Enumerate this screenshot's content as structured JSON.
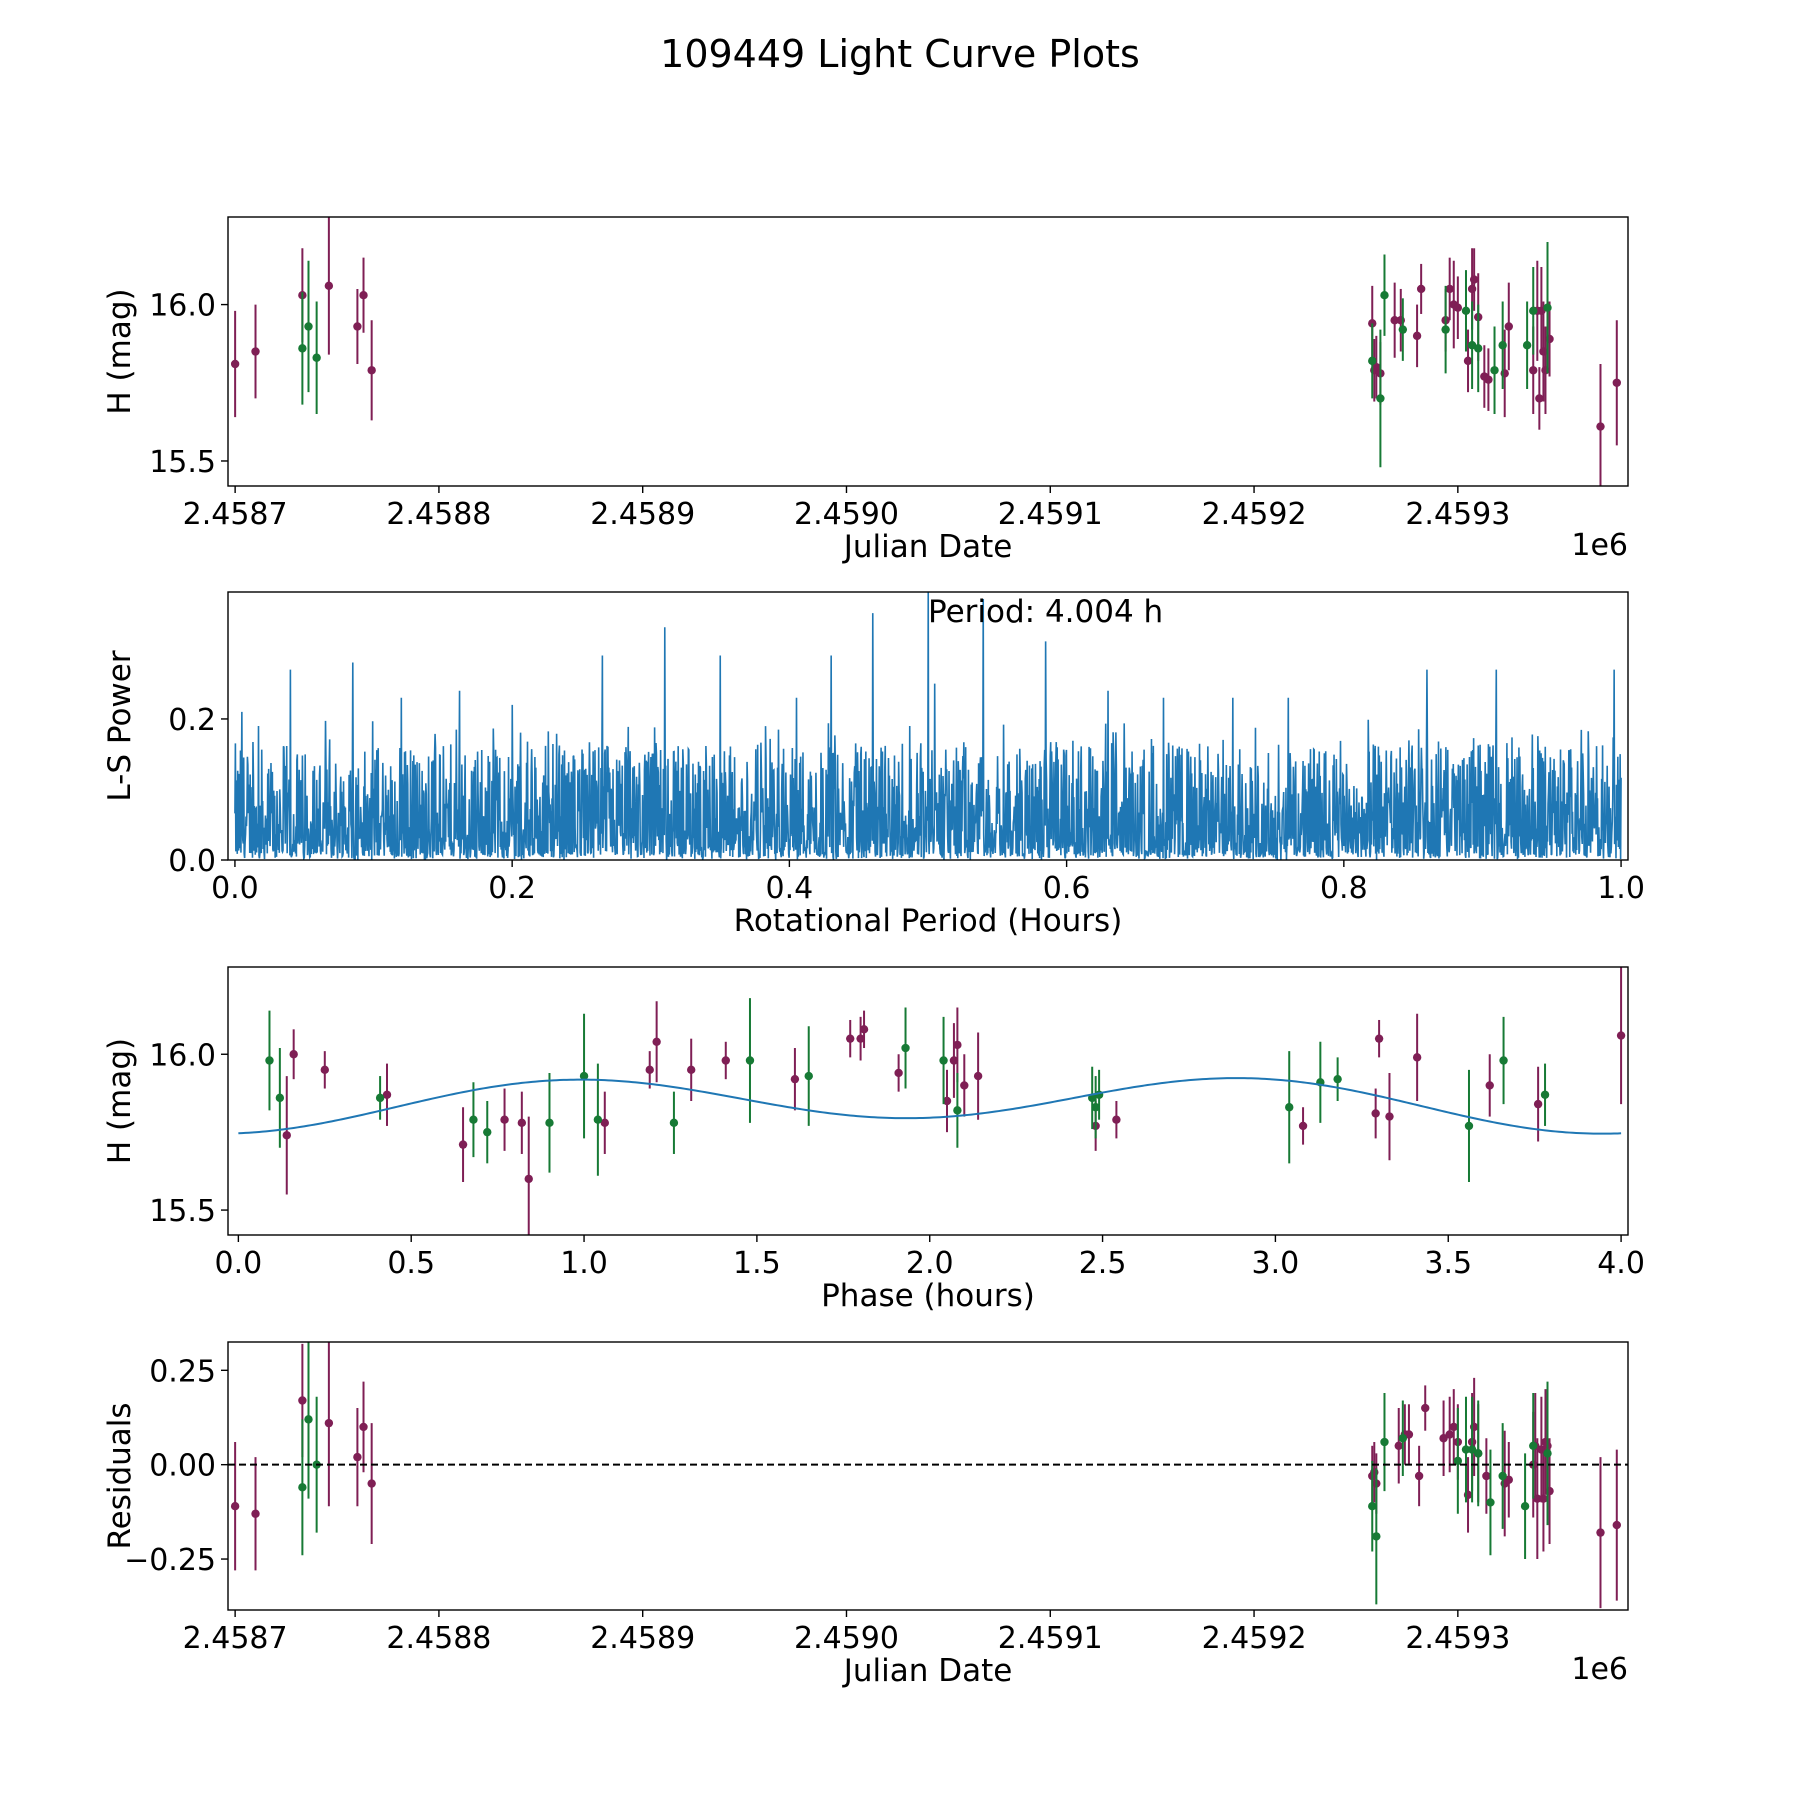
{
  "colors": {
    "magenta": "#7f1f55",
    "green": "#177a35",
    "fit": "#1f77b4",
    "periodogram": "#1f77b4",
    "zero_line": "#000000"
  },
  "chart_data": [
    {
      "id": "lightcurve",
      "type": "scatter",
      "suptitle": "109449 Light Curve Plots",
      "xlabel": "Julian Date",
      "ylabel": "H (mag)",
      "offset_label": "1e6",
      "xlim": [
        2458696.5,
        2459383.5
      ],
      "ylim": [
        15.42,
        16.28
      ],
      "xticks": [
        2458700,
        2458800,
        2458900,
        2459000,
        2459100,
        2459200,
        2459300
      ],
      "xtick_labels": [
        "2.4587",
        "2.4588",
        "2.4589",
        "2.4590",
        "2.4591",
        "2.4592",
        "2.4593"
      ],
      "yticks": [
        15.5,
        16.0
      ],
      "ytick_labels": [
        "15.5",
        "16.0"
      ],
      "series": [
        {
          "name": "magenta",
          "points": [
            [
              2458700.0,
              15.81,
              0.17
            ],
            [
              2458710.0,
              15.85,
              0.15
            ],
            [
              2458733.0,
              16.03,
              0.15
            ],
            [
              2458746.0,
              16.06,
              0.22
            ],
            [
              2458760.0,
              15.93,
              0.12
            ],
            [
              2458763.0,
              16.03,
              0.12
            ],
            [
              2458767.0,
              15.79,
              0.16
            ],
            [
              2459258.0,
              15.94,
              0.12
            ],
            [
              2459259.0,
              15.79,
              0.1
            ],
            [
              2459260.0,
              15.8,
              0.1
            ],
            [
              2459262.0,
              15.78,
              0.1
            ],
            [
              2459269.0,
              15.95,
              0.12
            ],
            [
              2459272.0,
              15.95,
              0.1
            ],
            [
              2459280.0,
              15.9,
              0.1
            ],
            [
              2459282.0,
              16.05,
              0.08
            ],
            [
              2459294.0,
              15.95,
              0.1
            ],
            [
              2459296.0,
              16.05,
              0.1
            ],
            [
              2459298.0,
              16.0,
              0.14
            ],
            [
              2459300.0,
              15.99,
              0.1
            ],
            [
              2459305.0,
              15.82,
              0.1
            ],
            [
              2459307.0,
              16.05,
              0.13
            ],
            [
              2459308.0,
              16.08,
              0.1
            ],
            [
              2459310.0,
              15.96,
              0.14
            ],
            [
              2459313.0,
              15.77,
              0.1
            ],
            [
              2459315.0,
              15.76,
              0.1
            ],
            [
              2459323.0,
              15.78,
              0.14
            ],
            [
              2459325.0,
              15.93,
              0.14
            ],
            [
              2459337.0,
              15.79,
              0.14
            ],
            [
              2459339.0,
              15.98,
              0.16
            ],
            [
              2459340.0,
              15.7,
              0.1
            ],
            [
              2459341.0,
              15.98,
              0.14
            ],
            [
              2459342.0,
              15.85,
              0.16
            ],
            [
              2459343.0,
              15.79,
              0.14
            ],
            [
              2459345.0,
              15.89,
              0.12
            ],
            [
              2459370.0,
              15.61,
              0.2
            ],
            [
              2459378.0,
              15.75,
              0.2
            ]
          ]
        },
        {
          "name": "green",
          "points": [
            [
              2458733.0,
              15.86,
              0.18
            ],
            [
              2458736.0,
              15.93,
              0.21
            ],
            [
              2458740.0,
              15.83,
              0.18
            ],
            [
              2459258.0,
              15.82,
              0.12
            ],
            [
              2459262.0,
              15.7,
              0.22
            ],
            [
              2459264.0,
              16.03,
              0.13
            ],
            [
              2459273.0,
              15.92,
              0.1
            ],
            [
              2459294.0,
              15.92,
              0.14
            ],
            [
              2459304.0,
              15.98,
              0.13
            ],
            [
              2459307.0,
              15.87,
              0.14
            ],
            [
              2459310.0,
              15.86,
              0.14
            ],
            [
              2459318.0,
              15.79,
              0.14
            ],
            [
              2459322.0,
              15.87,
              0.14
            ],
            [
              2459334.0,
              15.87,
              0.14
            ],
            [
              2459337.0,
              15.98,
              0.14
            ],
            [
              2459344.0,
              15.99,
              0.21
            ]
          ]
        }
      ]
    },
    {
      "id": "periodogram",
      "type": "line",
      "xlabel": "Rotational Period (Hours)",
      "ylabel": "L-S Power",
      "annotation": "Period: 4.004 h",
      "xlim": [
        -0.005,
        1.005
      ],
      "ylim": [
        0.0,
        0.38
      ],
      "xticks": [
        0.0,
        0.2,
        0.4,
        0.6,
        0.8,
        1.0
      ],
      "xtick_labels": [
        "0.0",
        "0.2",
        "0.4",
        "0.6",
        "0.8",
        "1.0"
      ],
      "yticks": [
        0.0,
        0.2
      ],
      "ytick_labels": [
        "0.0",
        "0.2"
      ],
      "n_samples": 3000,
      "max_power": 0.38,
      "peaks": [
        [
          0.005,
          0.21
        ],
        [
          0.017,
          0.19
        ],
        [
          0.04,
          0.27
        ],
        [
          0.085,
          0.28
        ],
        [
          0.12,
          0.23
        ],
        [
          0.162,
          0.24
        ],
        [
          0.2,
          0.22
        ],
        [
          0.265,
          0.29
        ],
        [
          0.31,
          0.33
        ],
        [
          0.35,
          0.29
        ],
        [
          0.405,
          0.23
        ],
        [
          0.43,
          0.29
        ],
        [
          0.46,
          0.35
        ],
        [
          0.5,
          0.38
        ],
        [
          0.505,
          0.25
        ],
        [
          0.54,
          0.37
        ],
        [
          0.585,
          0.31
        ],
        [
          0.63,
          0.24
        ],
        [
          0.67,
          0.23
        ],
        [
          0.72,
          0.23
        ],
        [
          0.76,
          0.23
        ],
        [
          0.86,
          0.27
        ],
        [
          0.91,
          0.27
        ],
        [
          0.995,
          0.27
        ]
      ]
    },
    {
      "id": "phase",
      "type": "scatter",
      "xlabel": "Phase (hours)",
      "ylabel": "H (mag)",
      "xlim": [
        -0.03,
        4.02
      ],
      "ylim": [
        15.42,
        16.28
      ],
      "xticks": [
        0.0,
        0.5,
        1.0,
        1.5,
        2.0,
        2.5,
        3.0,
        3.5,
        4.0
      ],
      "xtick_labels": [
        "0.0",
        "0.5",
        "1.0",
        "1.5",
        "2.0",
        "2.5",
        "3.0",
        "3.5",
        "4.0"
      ],
      "yticks": [
        15.5,
        16.0
      ],
      "ytick_labels": [
        "15.5",
        "16.0"
      ],
      "fit": {
        "period": 4.004,
        "mean": 15.845,
        "amp_1": 0.025,
        "amp_2": 0.075,
        "phase_2": 0.2
      },
      "series": [
        {
          "name": "magenta",
          "points": [
            [
              0.14,
              15.74,
              0.19
            ],
            [
              0.16,
              16.0,
              0.08
            ],
            [
              0.25,
              15.95,
              0.06
            ],
            [
              0.43,
              15.87,
              0.1
            ],
            [
              0.65,
              15.71,
              0.12
            ],
            [
              0.77,
              15.79,
              0.1
            ],
            [
              0.82,
              15.78,
              0.1
            ],
            [
              0.84,
              15.6,
              0.2
            ],
            [
              1.06,
              15.78,
              0.1
            ],
            [
              1.19,
              15.95,
              0.06
            ],
            [
              1.21,
              16.04,
              0.13
            ],
            [
              1.31,
              15.95,
              0.1
            ],
            [
              1.41,
              15.98,
              0.06
            ],
            [
              1.61,
              15.92,
              0.1
            ],
            [
              1.77,
              16.05,
              0.06
            ],
            [
              1.8,
              16.05,
              0.07
            ],
            [
              1.81,
              16.08,
              0.06
            ],
            [
              1.91,
              15.94,
              0.06
            ],
            [
              2.05,
              15.85,
              0.1
            ],
            [
              2.07,
              15.98,
              0.12
            ],
            [
              2.08,
              16.03,
              0.12
            ],
            [
              2.1,
              15.9,
              0.1
            ],
            [
              2.14,
              15.93,
              0.14
            ],
            [
              2.48,
              15.77,
              0.08
            ],
            [
              2.54,
              15.79,
              0.06
            ],
            [
              3.08,
              15.77,
              0.06
            ],
            [
              3.29,
              15.81,
              0.08
            ],
            [
              3.3,
              16.05,
              0.06
            ],
            [
              3.33,
              15.8,
              0.14
            ],
            [
              3.41,
              15.99,
              0.14
            ],
            [
              3.62,
              15.9,
              0.1
            ],
            [
              3.76,
              15.84,
              0.12
            ],
            [
              4.0,
              16.06,
              0.22
            ]
          ]
        },
        {
          "name": "green",
          "points": [
            [
              0.09,
              15.98,
              0.16
            ],
            [
              0.12,
              15.86,
              0.16
            ],
            [
              0.41,
              15.86,
              0.07
            ],
            [
              0.68,
              15.79,
              0.12
            ],
            [
              0.72,
              15.75,
              0.1
            ],
            [
              0.9,
              15.78,
              0.16
            ],
            [
              1.0,
              15.93,
              0.2
            ],
            [
              1.04,
              15.79,
              0.18
            ],
            [
              1.26,
              15.78,
              0.1
            ],
            [
              1.48,
              15.98,
              0.2
            ],
            [
              1.65,
              15.93,
              0.16
            ],
            [
              1.93,
              16.02,
              0.13
            ],
            [
              2.04,
              15.98,
              0.14
            ],
            [
              2.08,
              15.82,
              0.12
            ],
            [
              2.47,
              15.86,
              0.1
            ],
            [
              2.48,
              15.83,
              0.1
            ],
            [
              2.49,
              15.87,
              0.08
            ],
            [
              3.04,
              15.83,
              0.18
            ],
            [
              3.13,
              15.91,
              0.13
            ],
            [
              3.18,
              15.92,
              0.07
            ],
            [
              3.56,
              15.77,
              0.18
            ],
            [
              3.66,
              15.98,
              0.14
            ],
            [
              3.78,
              15.87,
              0.1
            ]
          ]
        }
      ]
    },
    {
      "id": "residuals",
      "type": "scatter",
      "xlabel": "Julian Date",
      "ylabel": "Residuals",
      "offset_label": "1e6",
      "xlim": [
        2458696.5,
        2459383.5
      ],
      "ylim": [
        -0.385,
        0.325
      ],
      "xticks": [
        2458700,
        2458800,
        2458900,
        2459000,
        2459100,
        2459200,
        2459300
      ],
      "xtick_labels": [
        "2.4587",
        "2.4588",
        "2.4589",
        "2.4590",
        "2.4591",
        "2.4592",
        "2.4593"
      ],
      "yticks": [
        -0.25,
        0.0,
        0.25
      ],
      "ytick_labels": [
        "−0.25",
        "0.00",
        "0.25"
      ],
      "zero_line": 0.0,
      "series": [
        {
          "name": "magenta",
          "points": [
            [
              2458700.0,
              -0.11,
              0.17
            ],
            [
              2458710.0,
              -0.13,
              0.15
            ],
            [
              2458733.0,
              0.17,
              0.15
            ],
            [
              2458746.0,
              0.11,
              0.22
            ],
            [
              2458760.0,
              0.02,
              0.13
            ],
            [
              2458763.0,
              0.1,
              0.12
            ],
            [
              2458767.0,
              -0.05,
              0.16
            ],
            [
              2459258.0,
              -0.03,
              0.08
            ],
            [
              2459259.0,
              -0.02,
              0.08
            ],
            [
              2459260.0,
              -0.05,
              0.08
            ],
            [
              2459271.0,
              0.05,
              0.1
            ],
            [
              2459274.0,
              0.08,
              0.08
            ],
            [
              2459276.0,
              0.08,
              0.08
            ],
            [
              2459281.0,
              -0.03,
              0.08
            ],
            [
              2459284.0,
              0.15,
              0.06
            ],
            [
              2459293.0,
              0.07,
              0.1
            ],
            [
              2459296.0,
              0.08,
              0.1
            ],
            [
              2459298.0,
              0.1,
              0.1
            ],
            [
              2459300.0,
              0.06,
              0.1
            ],
            [
              2459305.0,
              -0.08,
              0.1
            ],
            [
              2459307.0,
              0.06,
              0.13
            ],
            [
              2459308.0,
              0.1,
              0.13
            ],
            [
              2459310.0,
              0.03,
              0.13
            ],
            [
              2459314.0,
              -0.03,
              0.1
            ],
            [
              2459323.0,
              -0.05,
              0.14
            ],
            [
              2459325.0,
              -0.04,
              0.1
            ],
            [
              2459337.0,
              0.0,
              0.14
            ],
            [
              2459338.0,
              0.05,
              0.14
            ],
            [
              2459339.0,
              -0.09,
              0.16
            ],
            [
              2459341.0,
              0.04,
              0.14
            ],
            [
              2459342.0,
              -0.09,
              0.14
            ],
            [
              2459343.0,
              0.06,
              0.14
            ],
            [
              2459344.0,
              0.05,
              0.14
            ],
            [
              2459345.0,
              -0.07,
              0.14
            ],
            [
              2459370.0,
              -0.18,
              0.2
            ],
            [
              2459378.0,
              -0.16,
              0.2
            ]
          ]
        },
        {
          "name": "green",
          "points": [
            [
              2458733.0,
              -0.06,
              0.18
            ],
            [
              2458736.0,
              0.12,
              0.21
            ],
            [
              2458740.0,
              0.0,
              0.18
            ],
            [
              2459258.0,
              -0.11,
              0.12
            ],
            [
              2459260.0,
              -0.19,
              0.18
            ],
            [
              2459264.0,
              0.06,
              0.13
            ],
            [
              2459273.0,
              0.07,
              0.1
            ],
            [
              2459300.0,
              0.01,
              0.14
            ],
            [
              2459304.0,
              0.04,
              0.14
            ],
            [
              2459307.0,
              0.04,
              0.14
            ],
            [
              2459310.0,
              0.03,
              0.14
            ],
            [
              2459316.0,
              -0.1,
              0.14
            ],
            [
              2459322.0,
              -0.03,
              0.14
            ],
            [
              2459333.0,
              -0.11,
              0.14
            ],
            [
              2459337.0,
              0.05,
              0.14
            ],
            [
              2459344.0,
              0.03,
              0.19
            ]
          ]
        }
      ]
    }
  ]
}
